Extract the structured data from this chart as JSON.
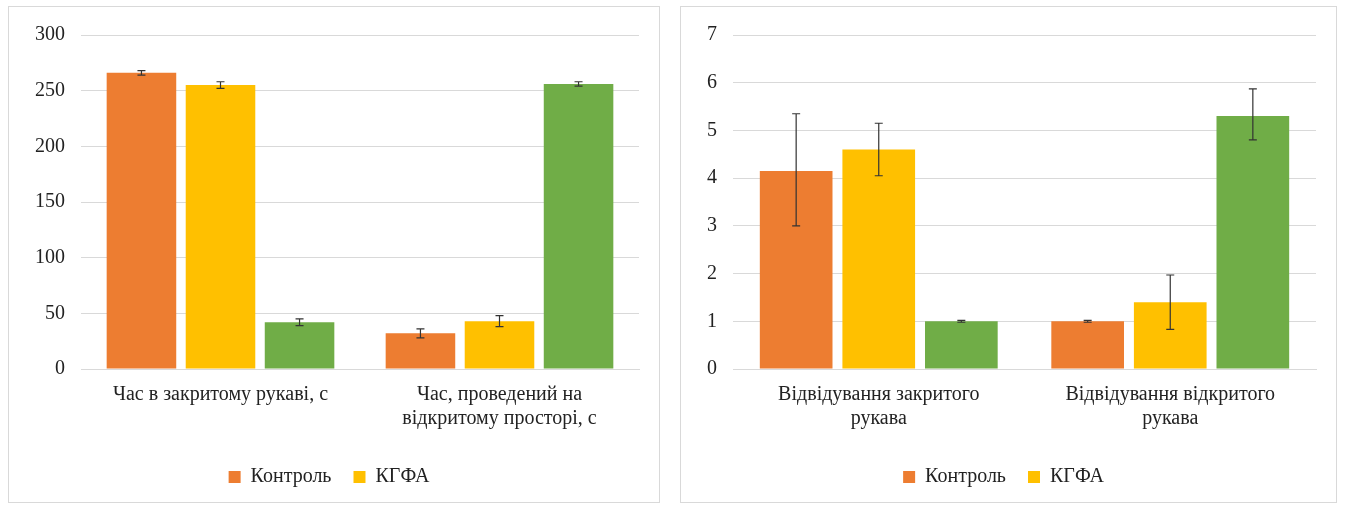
{
  "chart_data": [
    {
      "type": "bar",
      "categories": [
        "Час в закритому рукаві, с",
        "Час, проведений на відкритому просторі, с"
      ],
      "series": [
        {
          "name": "Контроль",
          "color": "#ed7d31",
          "values": [
            266,
            32
          ],
          "errors": [
            2,
            4
          ]
        },
        {
          "name": "КГФА",
          "color": "#ffc000",
          "values": [
            255,
            43
          ],
          "errors": [
            3,
            5
          ]
        },
        {
          "color": "#70ad47",
          "values": [
            42,
            256
          ],
          "errors": [
            3,
            2
          ]
        }
      ],
      "ylim": [
        0,
        300
      ],
      "yticks": [
        0,
        50,
        100,
        150,
        200,
        250,
        300
      ],
      "grid": "y",
      "legend": "bottom"
    },
    {
      "type": "bar",
      "categories": [
        "Відвідування закритого рукава",
        "Відвідування відкритого рукава"
      ],
      "series": [
        {
          "name": "Контроль",
          "color": "#ed7d31",
          "values": [
            4.15,
            1.0
          ],
          "errors": [
            [
              3.0,
              5.35
            ],
            0.02
          ]
        },
        {
          "name": "КГФА",
          "color": "#ffc000",
          "values": [
            4.6,
            1.4
          ],
          "errors": [
            [
              4.05,
              5.15
            ],
            [
              0.83,
              1.97
            ]
          ]
        },
        {
          "color": "#70ad47",
          "values": [
            1.0,
            5.3
          ],
          "errors": [
            0.02,
            [
              4.8,
              5.87
            ]
          ]
        }
      ],
      "ylim": [
        0,
        7
      ],
      "yticks": [
        0,
        1,
        2,
        3,
        4,
        5,
        6,
        7
      ],
      "grid": "y",
      "legend": "bottom"
    }
  ]
}
